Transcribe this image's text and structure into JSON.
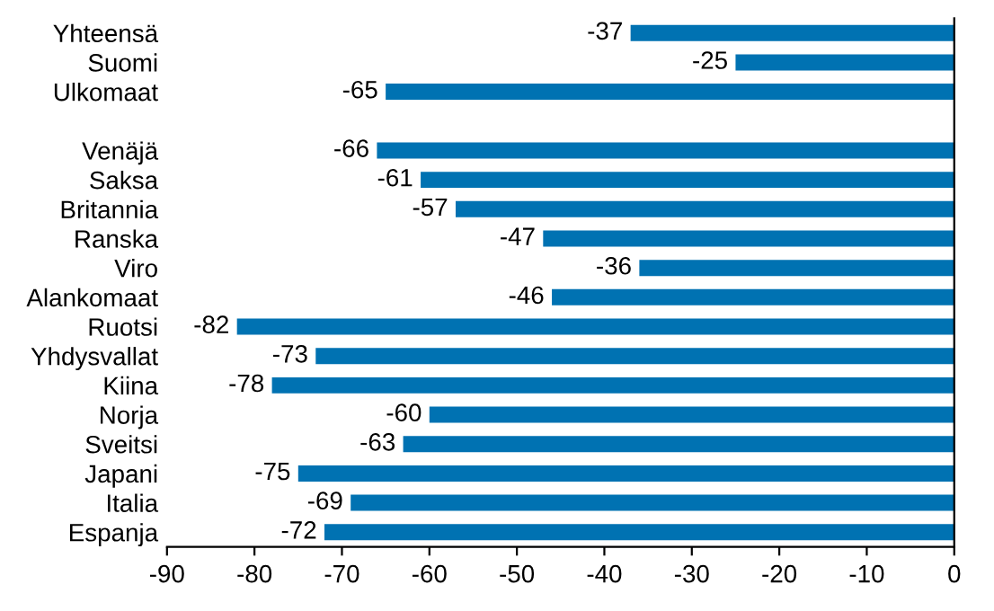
{
  "chart_data": {
    "type": "bar",
    "orientation": "horizontal",
    "categories": [
      "Yhteensä",
      "Suomi",
      "Ulkomaat",
      null,
      "Venäjä",
      "Saksa",
      "Britannia",
      "Ranska",
      "Viro",
      "Alankomaat",
      "Ruotsi",
      "Yhdysvallat",
      "Kiina",
      "Norja",
      "Sveitsi",
      "Japani",
      "Italia",
      "Espanja"
    ],
    "values": [
      -37,
      -25,
      -65,
      null,
      -66,
      -61,
      -57,
      -47,
      -36,
      -46,
      -82,
      -73,
      -78,
      -60,
      -63,
      -75,
      -69,
      -72
    ],
    "color": "#0072b2",
    "xlim": [
      -90,
      0
    ],
    "xticks": [
      -90,
      -80,
      -70,
      -60,
      -50,
      -40,
      -30,
      -20,
      -10,
      0
    ],
    "data_labels": true,
    "grid": false,
    "legend": false
  }
}
